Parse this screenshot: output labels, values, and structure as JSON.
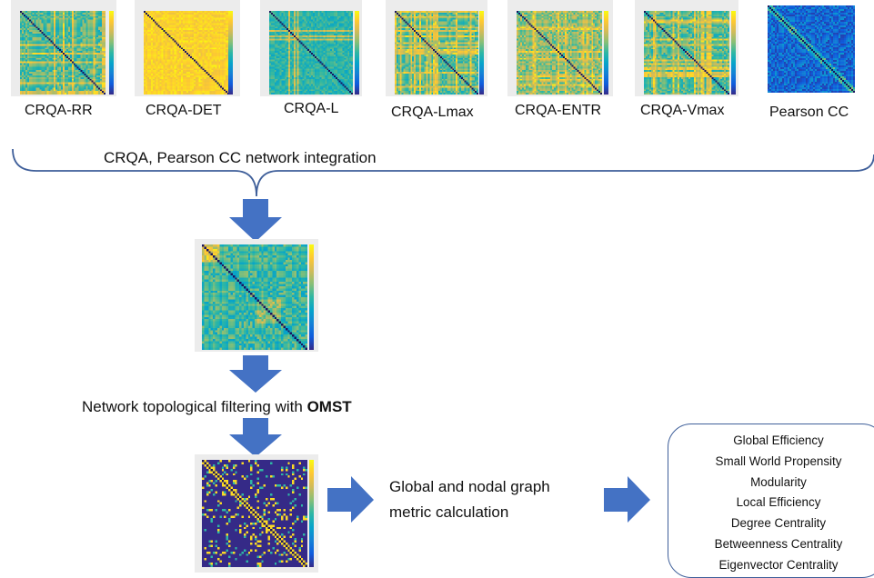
{
  "top_row": {
    "measures": [
      {
        "label": "CRQA-RR",
        "theme": "mixed"
      },
      {
        "label": "CRQA-DET",
        "theme": "yellow"
      },
      {
        "label": "CRQA-L",
        "theme": "cyan"
      },
      {
        "label": "CRQA-Lmax",
        "theme": "mixed"
      },
      {
        "label": "CRQA-ENTR",
        "theme": "warm"
      },
      {
        "label": "CRQA-Vmax",
        "theme": "mixed"
      },
      {
        "label": "Pearson CC",
        "theme": "blue"
      }
    ]
  },
  "integration_label": "CRQA, Pearson CC network integration",
  "filtering": {
    "prefix": "Network topological filtering with ",
    "method": "OMST"
  },
  "metric_step": {
    "line1": "Global and nodal graph",
    "line2": "metric calculation"
  },
  "metrics": [
    "Global Efficiency",
    "Small World Propensity",
    "Modularity",
    "Local Efficiency",
    "Degree Centrality",
    "Betweenness Centrality",
    "Eigenvector Centrality"
  ],
  "colors": {
    "arrow": "#4472c4",
    "brace": "#3f5f9a",
    "panel_bg": "#ececec",
    "parula_low": "#352a87",
    "parula_high": "#f9fb0e"
  },
  "icons": [
    "down-arrow-icon",
    "right-arrow-icon",
    "curly-brace"
  ]
}
